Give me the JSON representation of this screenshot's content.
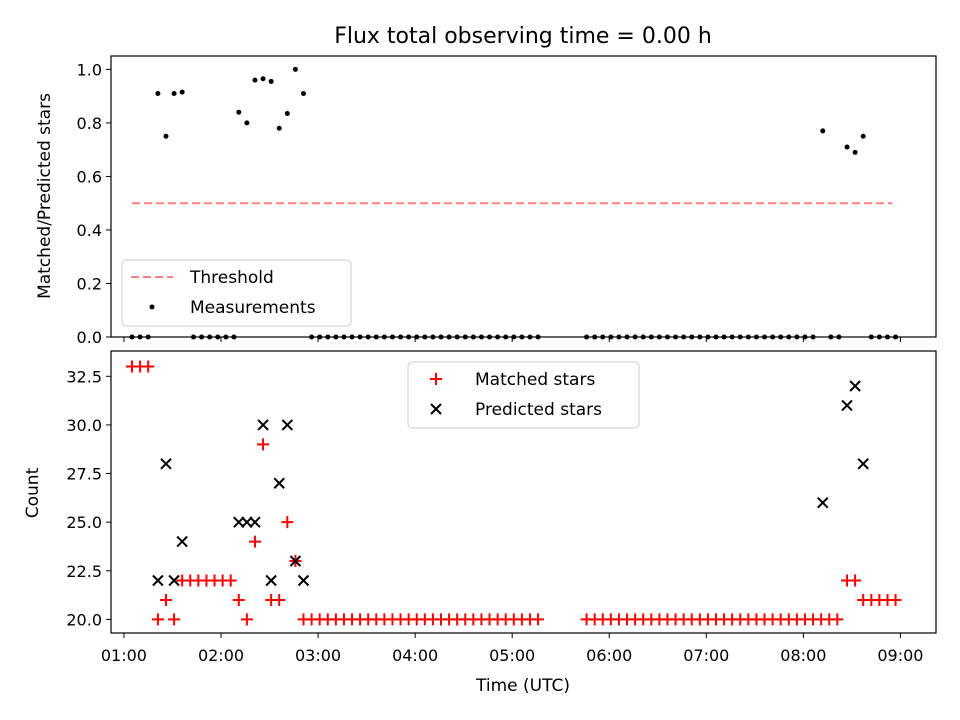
{
  "chart_data": [
    {
      "type": "scatter",
      "title": "Flux total observing time = 0.00 h",
      "xlabel": "",
      "ylabel": "Matched/Predicted stars",
      "xlim": [
        "00:52",
        "09:22"
      ],
      "ylim": [
        0.0,
        1.05
      ],
      "x_ticks": [
        "01:00",
        "02:00",
        "03:00",
        "04:00",
        "05:00",
        "06:00",
        "07:00",
        "08:00",
        "09:00"
      ],
      "x_tick_labels_shown": false,
      "y_ticks": [
        0.0,
        0.2,
        0.4,
        0.6,
        0.8,
        1.0
      ],
      "y_tick_labels": [
        "0.0",
        "0.2",
        "0.4",
        "0.6",
        "0.8",
        "1.0"
      ],
      "grid": false,
      "legend_position": "bottom-left",
      "series": [
        {
          "name": "Threshold",
          "style": "dashed-line",
          "color": "#ff7f7f",
          "points": [
            [
              "01:05",
              0.5
            ],
            [
              "08:55",
              0.5
            ]
          ]
        },
        {
          "name": "Measurements",
          "style": "dot",
          "color": "#000000",
          "points": [
            [
              "01:05",
              0.0
            ],
            [
              "01:10",
              0.0
            ],
            [
              "01:15",
              0.0
            ],
            [
              "01:21",
              0.91
            ],
            [
              "01:26",
              0.75
            ],
            [
              "01:31",
              0.91
            ],
            [
              "01:36",
              0.915
            ],
            [
              "01:43",
              0.0
            ],
            [
              "01:48",
              0.0
            ],
            [
              "01:53",
              0.0
            ],
            [
              "01:58",
              0.0
            ],
            [
              "02:03",
              0.0
            ],
            [
              "02:08",
              0.0
            ],
            [
              "02:11",
              0.84
            ],
            [
              "02:16",
              0.8
            ],
            [
              "02:21",
              0.96
            ],
            [
              "02:26",
              0.965
            ],
            [
              "02:31",
              0.955
            ],
            [
              "02:36",
              0.78
            ],
            [
              "02:41",
              0.835
            ],
            [
              "02:46",
              1.0
            ],
            [
              "02:51",
              0.91
            ],
            [
              "02:56",
              0.0
            ],
            [
              "03:01",
              0.0
            ],
            [
              "03:06",
              0.0
            ],
            [
              "03:11",
              0.0
            ],
            [
              "03:16",
              0.0
            ],
            [
              "03:21",
              0.0
            ],
            [
              "03:26",
              0.0
            ],
            [
              "03:31",
              0.0
            ],
            [
              "03:36",
              0.0
            ],
            [
              "03:41",
              0.0
            ],
            [
              "03:46",
              0.0
            ],
            [
              "03:51",
              0.0
            ],
            [
              "03:56",
              0.0
            ],
            [
              "04:01",
              0.0
            ],
            [
              "04:06",
              0.0
            ],
            [
              "04:11",
              0.0
            ],
            [
              "04:16",
              0.0
            ],
            [
              "04:21",
              0.0
            ],
            [
              "04:26",
              0.0
            ],
            [
              "04:31",
              0.0
            ],
            [
              "04:36",
              0.0
            ],
            [
              "04:41",
              0.0
            ],
            [
              "04:46",
              0.0
            ],
            [
              "04:51",
              0.0
            ],
            [
              "04:56",
              0.0
            ],
            [
              "05:01",
              0.0
            ],
            [
              "05:06",
              0.0
            ],
            [
              "05:11",
              0.0
            ],
            [
              "05:16",
              0.0
            ],
            [
              "05:46",
              0.0
            ],
            [
              "05:51",
              0.0
            ],
            [
              "05:56",
              0.0
            ],
            [
              "06:01",
              0.0
            ],
            [
              "06:06",
              0.0
            ],
            [
              "06:11",
              0.0
            ],
            [
              "06:16",
              0.0
            ],
            [
              "06:21",
              0.0
            ],
            [
              "06:26",
              0.0
            ],
            [
              "06:31",
              0.0
            ],
            [
              "06:36",
              0.0
            ],
            [
              "06:41",
              0.0
            ],
            [
              "06:46",
              0.0
            ],
            [
              "06:51",
              0.0
            ],
            [
              "06:56",
              0.0
            ],
            [
              "07:01",
              0.0
            ],
            [
              "07:06",
              0.0
            ],
            [
              "07:11",
              0.0
            ],
            [
              "07:16",
              0.0
            ],
            [
              "07:21",
              0.0
            ],
            [
              "07:26",
              0.0
            ],
            [
              "07:31",
              0.0
            ],
            [
              "07:36",
              0.0
            ],
            [
              "07:41",
              0.0
            ],
            [
              "07:46",
              0.0
            ],
            [
              "07:51",
              0.0
            ],
            [
              "07:56",
              0.0
            ],
            [
              "08:01",
              0.0
            ],
            [
              "08:06",
              0.0
            ],
            [
              "08:12",
              0.77
            ],
            [
              "08:17",
              0.0
            ],
            [
              "08:22",
              0.0
            ],
            [
              "08:27",
              0.71
            ],
            [
              "08:32",
              0.69
            ],
            [
              "08:37",
              0.75
            ],
            [
              "08:42",
              0.0
            ],
            [
              "08:47",
              0.0
            ],
            [
              "08:52",
              0.0
            ],
            [
              "08:57",
              0.0
            ]
          ]
        }
      ]
    },
    {
      "type": "scatter",
      "title": "",
      "xlabel": "Time (UTC)",
      "ylabel": "Count",
      "xlim": [
        "00:52",
        "09:22"
      ],
      "ylim": [
        19.3,
        33.8
      ],
      "x_ticks": [
        "01:00",
        "02:00",
        "03:00",
        "04:00",
        "05:00",
        "06:00",
        "07:00",
        "08:00",
        "09:00"
      ],
      "y_ticks": [
        20.0,
        22.5,
        25.0,
        27.5,
        30.0,
        32.5
      ],
      "y_tick_labels": [
        "20.0",
        "22.5",
        "25.0",
        "27.5",
        "30.0",
        "32.5"
      ],
      "grid": false,
      "legend_position": "top-center",
      "series": [
        {
          "name": "Matched stars",
          "marker": "plus",
          "color": "#ff0000",
          "points": [
            [
              "01:05",
              33
            ],
            [
              "01:10",
              33
            ],
            [
              "01:15",
              33
            ],
            [
              "01:21",
              20
            ],
            [
              "01:26",
              21
            ],
            [
              "01:31",
              20
            ],
            [
              "01:36",
              22
            ],
            [
              "01:41",
              22
            ],
            [
              "01:46",
              22
            ],
            [
              "01:51",
              22
            ],
            [
              "01:56",
              22
            ],
            [
              "02:01",
              22
            ],
            [
              "02:06",
              22
            ],
            [
              "02:11",
              21
            ],
            [
              "02:16",
              20
            ],
            [
              "02:21",
              24
            ],
            [
              "02:26",
              29
            ],
            [
              "02:31",
              21
            ],
            [
              "02:36",
              21
            ],
            [
              "02:41",
              25
            ],
            [
              "02:46",
              23
            ],
            [
              "02:51",
              20
            ],
            [
              "02:56",
              20
            ],
            [
              "03:01",
              20
            ],
            [
              "03:06",
              20
            ],
            [
              "03:11",
              20
            ],
            [
              "03:16",
              20
            ],
            [
              "03:21",
              20
            ],
            [
              "03:26",
              20
            ],
            [
              "03:31",
              20
            ],
            [
              "03:36",
              20
            ],
            [
              "03:41",
              20
            ],
            [
              "03:46",
              20
            ],
            [
              "03:51",
              20
            ],
            [
              "03:56",
              20
            ],
            [
              "04:01",
              20
            ],
            [
              "04:06",
              20
            ],
            [
              "04:11",
              20
            ],
            [
              "04:16",
              20
            ],
            [
              "04:21",
              20
            ],
            [
              "04:26",
              20
            ],
            [
              "04:31",
              20
            ],
            [
              "04:36",
              20
            ],
            [
              "04:41",
              20
            ],
            [
              "04:46",
              20
            ],
            [
              "04:51",
              20
            ],
            [
              "04:56",
              20
            ],
            [
              "05:01",
              20
            ],
            [
              "05:06",
              20
            ],
            [
              "05:11",
              20
            ],
            [
              "05:16",
              20
            ],
            [
              "05:46",
              20
            ],
            [
              "05:51",
              20
            ],
            [
              "05:56",
              20
            ],
            [
              "06:01",
              20
            ],
            [
              "06:06",
              20
            ],
            [
              "06:11",
              20
            ],
            [
              "06:16",
              20
            ],
            [
              "06:21",
              20
            ],
            [
              "06:26",
              20
            ],
            [
              "06:31",
              20
            ],
            [
              "06:36",
              20
            ],
            [
              "06:41",
              20
            ],
            [
              "06:46",
              20
            ],
            [
              "06:51",
              20
            ],
            [
              "06:56",
              20
            ],
            [
              "07:01",
              20
            ],
            [
              "07:06",
              20
            ],
            [
              "07:11",
              20
            ],
            [
              "07:16",
              20
            ],
            [
              "07:21",
              20
            ],
            [
              "07:26",
              20
            ],
            [
              "07:31",
              20
            ],
            [
              "07:36",
              20
            ],
            [
              "07:41",
              20
            ],
            [
              "07:46",
              20
            ],
            [
              "07:51",
              20
            ],
            [
              "07:56",
              20
            ],
            [
              "08:01",
              20
            ],
            [
              "08:06",
              20
            ],
            [
              "08:11",
              20
            ],
            [
              "08:16",
              20
            ],
            [
              "08:21",
              20
            ],
            [
              "08:27",
              22
            ],
            [
              "08:32",
              22
            ],
            [
              "08:37",
              21
            ],
            [
              "08:42",
              21
            ],
            [
              "08:47",
              21
            ],
            [
              "08:52",
              21
            ],
            [
              "08:57",
              21
            ]
          ]
        },
        {
          "name": "Predicted stars",
          "marker": "x",
          "color": "#000000",
          "points": [
            [
              "01:21",
              22
            ],
            [
              "01:26",
              28
            ],
            [
              "01:31",
              22
            ],
            [
              "01:36",
              24
            ],
            [
              "02:11",
              25
            ],
            [
              "02:16",
              25
            ],
            [
              "02:21",
              25
            ],
            [
              "02:26",
              30
            ],
            [
              "02:31",
              22
            ],
            [
              "02:36",
              27
            ],
            [
              "02:41",
              30
            ],
            [
              "02:46",
              23
            ],
            [
              "02:51",
              22
            ],
            [
              "08:12",
              26
            ],
            [
              "08:27",
              31
            ],
            [
              "08:32",
              32
            ],
            [
              "08:37",
              28
            ]
          ]
        }
      ]
    }
  ]
}
